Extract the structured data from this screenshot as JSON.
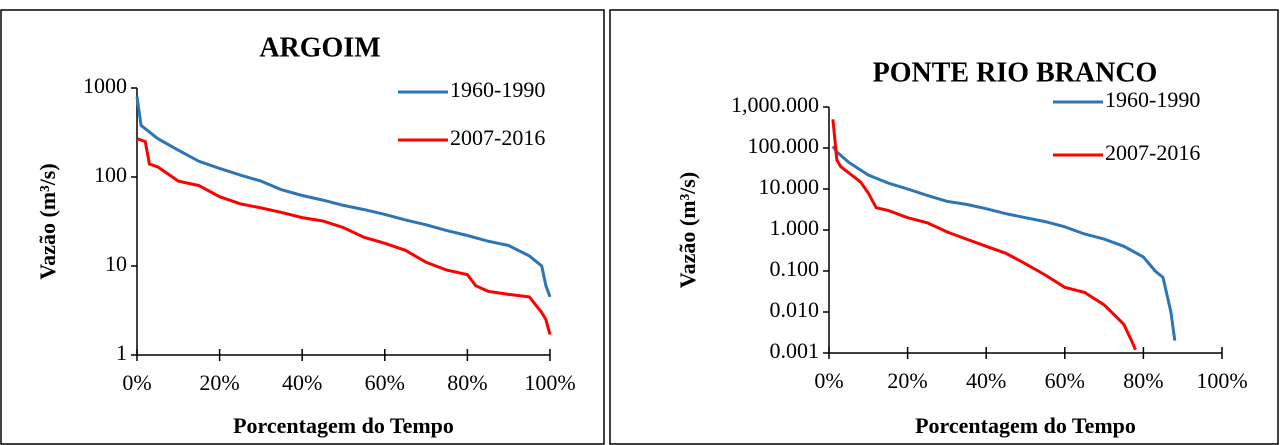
{
  "chart_data": [
    {
      "type": "line",
      "title": "ARGOIM",
      "xlabel": "Porcentagem do Tempo",
      "ylabel": "Vazão (m³/s)",
      "yscale": "log",
      "ylim": [
        1,
        1000
      ],
      "yticks": [
        1,
        10,
        100,
        1000
      ],
      "xlim": [
        0,
        100
      ],
      "xticks": [
        {
          "value": 0,
          "label": "0%"
        },
        {
          "value": 20,
          "label": "20%"
        },
        {
          "value": 40,
          "label": "40%"
        },
        {
          "value": 60,
          "label": "60%"
        },
        {
          "value": 80,
          "label": "80%"
        },
        {
          "value": 100,
          "label": "100%"
        }
      ],
      "series": [
        {
          "name": "1960-1990",
          "color": "#2e75b6",
          "x": [
            0,
            1,
            5,
            10,
            15,
            20,
            25,
            30,
            35,
            40,
            45,
            50,
            55,
            60,
            65,
            70,
            75,
            80,
            85,
            90,
            95,
            98,
            99,
            100
          ],
          "values": [
            800,
            380,
            270,
            200,
            150,
            125,
            105,
            90,
            72,
            62,
            55,
            48,
            43,
            38,
            33,
            29,
            25,
            22,
            19,
            17,
            13,
            10,
            6,
            4.5
          ]
        },
        {
          "name": "2007-2016",
          "color": "#ff0000",
          "x": [
            0,
            2,
            3,
            5,
            10,
            15,
            20,
            25,
            30,
            35,
            40,
            45,
            50,
            55,
            60,
            65,
            70,
            75,
            80,
            82,
            85,
            90,
            95,
            98,
            99,
            100
          ],
          "values": [
            270,
            250,
            140,
            130,
            90,
            80,
            60,
            50,
            45,
            40,
            35,
            32,
            27,
            21,
            18,
            15,
            11,
            9,
            8,
            6,
            5.2,
            4.8,
            4.5,
            3,
            2.5,
            1.7
          ]
        }
      ]
    },
    {
      "type": "line",
      "title": "PONTE RIO BRANCO",
      "xlabel": "Porcentagem do Tempo",
      "ylabel": "Vazão (m³/s)",
      "yscale": "log",
      "ylim": [
        0.001,
        1000
      ],
      "yticks": [
        {
          "value": 0.001,
          "label": "0.001"
        },
        {
          "value": 0.01,
          "label": "0.010"
        },
        {
          "value": 0.1,
          "label": "0.100"
        },
        {
          "value": 1,
          "label": "1.000"
        },
        {
          "value": 10,
          "label": "10.000"
        },
        {
          "value": 100,
          "label": "100.000"
        },
        {
          "value": 1000,
          "label": "1,000.000"
        }
      ],
      "xlim": [
        0,
        100
      ],
      "xticks": [
        {
          "value": 0,
          "label": "0%"
        },
        {
          "value": 20,
          "label": "20%"
        },
        {
          "value": 40,
          "label": "40%"
        },
        {
          "value": 60,
          "label": "60%"
        },
        {
          "value": 80,
          "label": "80%"
        },
        {
          "value": 100,
          "label": "100%"
        }
      ],
      "series": [
        {
          "name": "1960-1990",
          "color": "#2e75b6",
          "x": [
            1,
            2,
            5,
            10,
            15,
            20,
            25,
            30,
            35,
            40,
            45,
            50,
            55,
            60,
            65,
            70,
            75,
            80,
            83,
            85,
            87,
            88
          ],
          "values": [
            110,
            80,
            45,
            22,
            14,
            10,
            7,
            5,
            4.2,
            3.3,
            2.5,
            2.0,
            1.6,
            1.2,
            0.8,
            0.6,
            0.4,
            0.22,
            0.1,
            0.07,
            0.01,
            0.002
          ]
        },
        {
          "name": "2007-2016",
          "color": "#ff0000",
          "x": [
            1,
            2,
            3,
            5,
            8,
            10,
            12,
            15,
            20,
            25,
            30,
            35,
            40,
            45,
            50,
            55,
            60,
            65,
            70,
            75,
            77,
            78
          ],
          "values": [
            500,
            50,
            35,
            25,
            15,
            8,
            3.5,
            3,
            2.0,
            1.5,
            0.9,
            0.6,
            0.4,
            0.27,
            0.15,
            0.08,
            0.04,
            0.03,
            0.015,
            0.005,
            0.002,
            0.0012
          ]
        }
      ]
    }
  ]
}
